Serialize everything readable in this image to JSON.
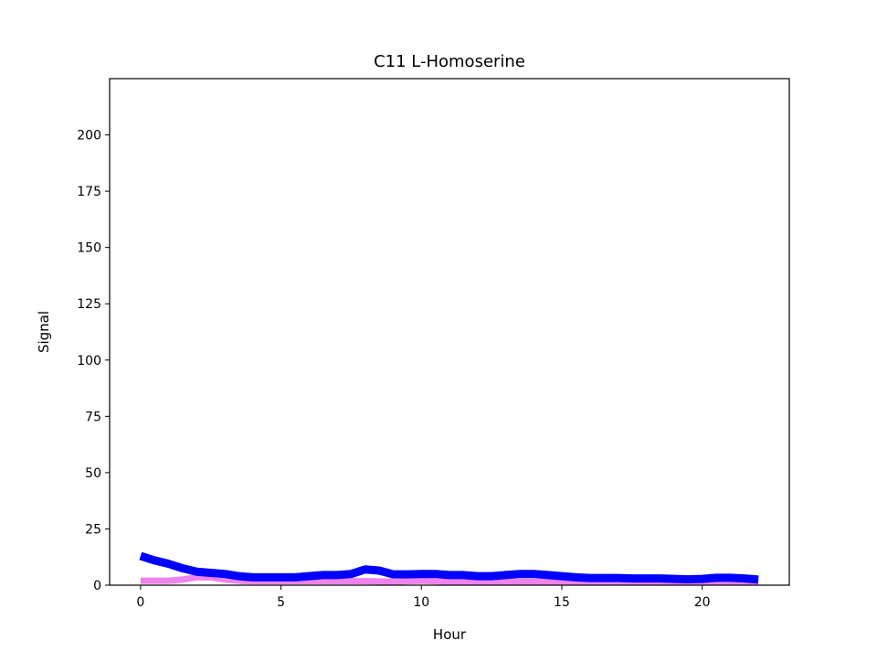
{
  "chart_data": {
    "type": "line",
    "title": "C11 L-Homoserine",
    "xlabel": "Hour",
    "ylabel": "Signal",
    "xlim": [
      -1.1,
      23.1
    ],
    "ylim": [
      0,
      225
    ],
    "xticks": [
      0,
      5,
      10,
      15,
      20
    ],
    "yticks": [
      0,
      25,
      50,
      75,
      100,
      125,
      150,
      175,
      200
    ],
    "grid": false,
    "legend": "none",
    "series": [
      {
        "color": "#ee82ee",
        "x": [
          0,
          0.5,
          1,
          1.5,
          2,
          2.5,
          3,
          3.5,
          4,
          5,
          6,
          7,
          8,
          9,
          10,
          11,
          12,
          13,
          14,
          15,
          16,
          17,
          18,
          19,
          20,
          21,
          22
        ],
        "values": [
          2,
          2,
          2,
          2.5,
          3.5,
          3.5,
          2.5,
          2,
          1.8,
          1.8,
          1.8,
          1.8,
          1.8,
          1.5,
          2,
          1.5,
          1.5,
          1.5,
          1.5,
          1.5,
          1.5,
          1.5,
          1.5,
          1.5,
          1.5,
          1.5,
          1.5
        ]
      },
      {
        "color": "#0000ff",
        "x": [
          0,
          0.5,
          1,
          1.5,
          2,
          2.5,
          3,
          3.5,
          4,
          4.5,
          5,
          5.5,
          6,
          6.5,
          7,
          7.5,
          8,
          8.5,
          9,
          9.5,
          10,
          10.5,
          11,
          11.5,
          12,
          12.5,
          13,
          13.5,
          14,
          14.5,
          15,
          15.5,
          16,
          16.5,
          17,
          17.5,
          18,
          18.5,
          19,
          19.5,
          20,
          20.5,
          21,
          21.5,
          22
        ],
        "values": [
          13,
          11,
          9.5,
          7.5,
          6,
          5.5,
          5,
          4,
          3.5,
          3.5,
          3.5,
          3.5,
          4,
          4.5,
          4.5,
          5,
          7,
          6.5,
          4.8,
          4.8,
          5,
          5,
          4.5,
          4.5,
          4,
          4,
          4.5,
          5,
          5,
          4.5,
          4,
          3.5,
          3.2,
          3.2,
          3.2,
          3,
          3,
          3,
          2.8,
          2.6,
          2.8,
          3.3,
          3.3,
          3,
          2.5
        ]
      }
    ]
  }
}
